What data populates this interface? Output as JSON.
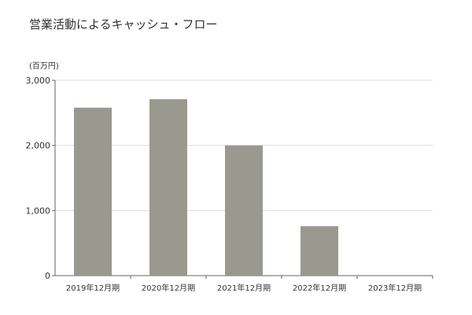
{
  "chart_data": {
    "type": "bar",
    "title": "営業活動によるキャッシュ・フロー",
    "unit_label": "(百万円)",
    "categories": [
      "2019年12月期",
      "2020年12月期",
      "2021年12月期",
      "2022年12月期",
      "2023年12月期"
    ],
    "values": [
      2580,
      2710,
      2000,
      760,
      0
    ],
    "ylim": [
      0,
      3000
    ],
    "yticks": [
      0,
      1000,
      2000,
      3000
    ],
    "ytick_labels": [
      "0",
      "1,000",
      "2,000",
      "3,000"
    ],
    "grid": true,
    "bar_color": "#999990",
    "grid_color": "#dddddd"
  }
}
